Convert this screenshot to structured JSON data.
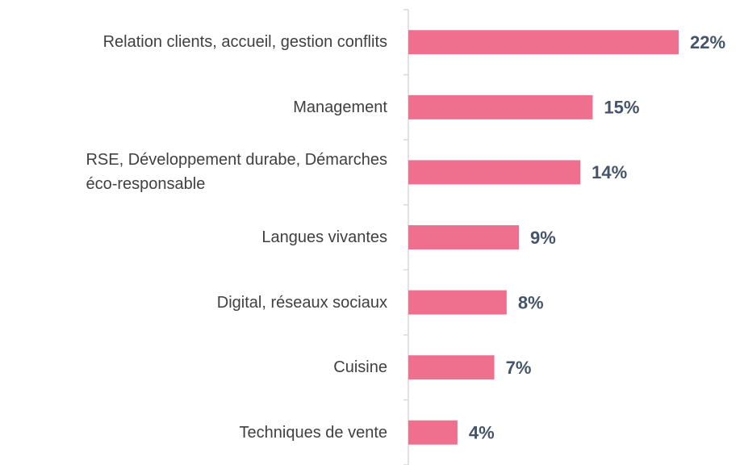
{
  "chart_data": {
    "type": "barh",
    "categories": [
      "Relation clients, accueil, gestion conflits",
      "Management",
      "RSE, Développement durabe, Démarches\néco-responsable",
      "Langues vivantes",
      "Digital, réseaux sociaux",
      "Cuisine",
      "Techniques de vente"
    ],
    "values": [
      22,
      15,
      14,
      9,
      8,
      7,
      4
    ],
    "value_labels": [
      "22%",
      "15%",
      "14%",
      "9%",
      "8%",
      "7%",
      "4%"
    ],
    "color": "#ef6f8f",
    "xlim": [
      0,
      22
    ]
  }
}
